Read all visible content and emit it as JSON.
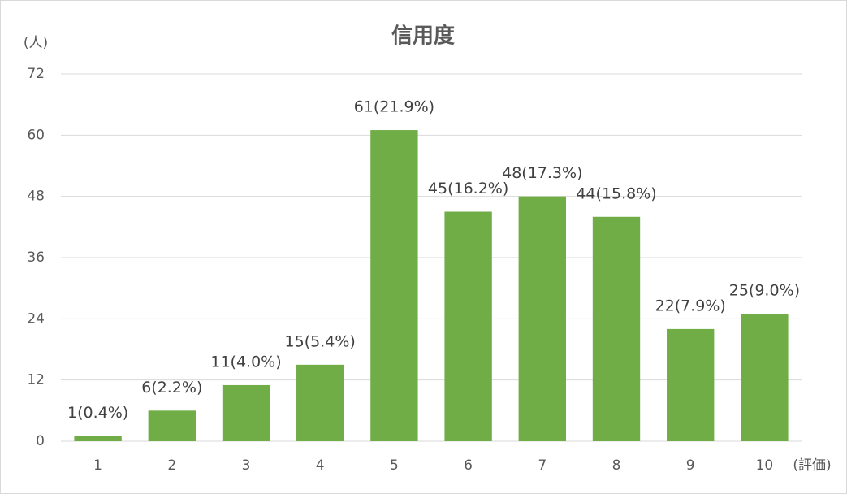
{
  "chart_data": {
    "type": "bar",
    "title": "信用度",
    "y_label": "(人)",
    "x_label": "(評価)",
    "categories": [
      "1",
      "2",
      "3",
      "4",
      "5",
      "6",
      "7",
      "8",
      "9",
      "10"
    ],
    "values": [
      1,
      6,
      11,
      15,
      61,
      45,
      48,
      44,
      22,
      25
    ],
    "value_labels": [
      "1(0.4%)",
      "6(2.2%)",
      "11(4.0%)",
      "15(5.4%)",
      "61(21.9%)",
      "45(16.2%)",
      "48(17.3%)",
      "44(15.8%)",
      "22(7.9%)",
      "25(9.0%)"
    ],
    "color": "#70ad47",
    "ylim": [
      0,
      72
    ],
    "yticks": [
      0,
      12,
      24,
      36,
      48,
      60,
      72
    ],
    "grid": true
  }
}
